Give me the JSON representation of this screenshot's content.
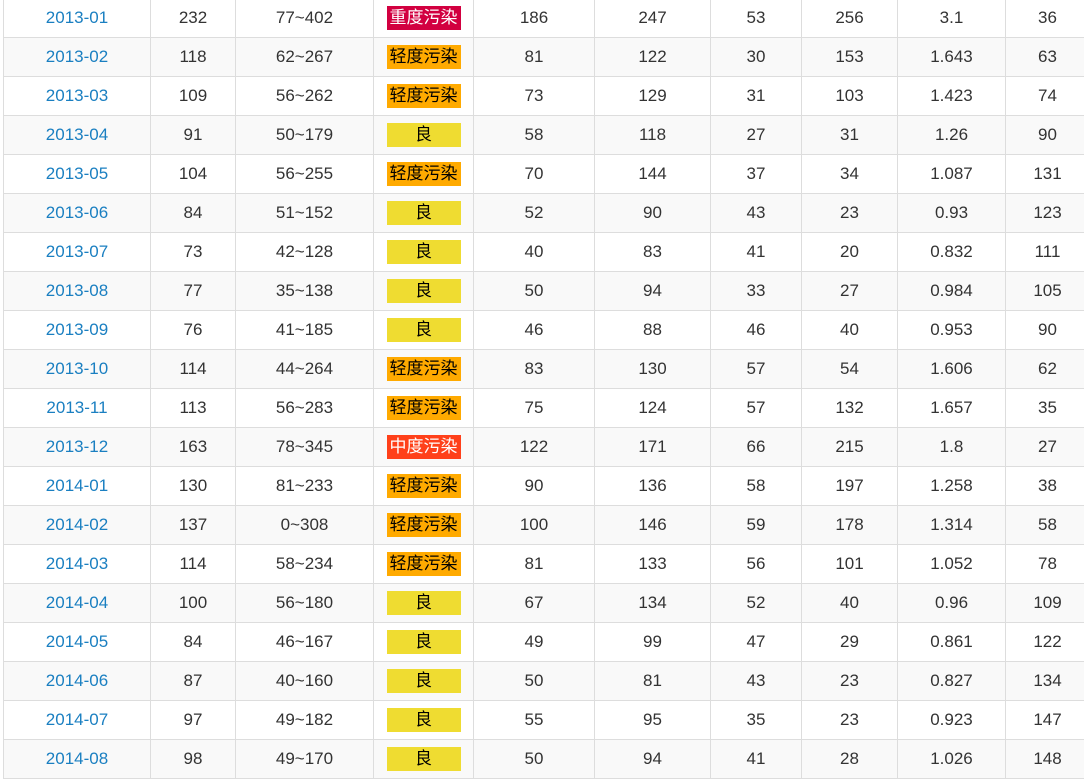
{
  "rows": [
    {
      "month": "2013-01",
      "aqi": "232",
      "range": "77~402",
      "level": "重度污染",
      "level_key": "heavy",
      "pm25": "186",
      "pm10": "247",
      "so2": "53",
      "co": "256",
      "no2": "3.1",
      "o3": "36"
    },
    {
      "month": "2013-02",
      "aqi": "118",
      "range": "62~267",
      "level": "轻度污染",
      "level_key": "light",
      "pm25": "81",
      "pm10": "122",
      "so2": "30",
      "co": "153",
      "no2": "1.643",
      "o3": "63"
    },
    {
      "month": "2013-03",
      "aqi": "109",
      "range": "56~262",
      "level": "轻度污染",
      "level_key": "light",
      "pm25": "73",
      "pm10": "129",
      "so2": "31",
      "co": "103",
      "no2": "1.423",
      "o3": "74"
    },
    {
      "month": "2013-04",
      "aqi": "91",
      "range": "50~179",
      "level": "良",
      "level_key": "good",
      "pm25": "58",
      "pm10": "118",
      "so2": "27",
      "co": "31",
      "no2": "1.26",
      "o3": "90"
    },
    {
      "month": "2013-05",
      "aqi": "104",
      "range": "56~255",
      "level": "轻度污染",
      "level_key": "light",
      "pm25": "70",
      "pm10": "144",
      "so2": "37",
      "co": "34",
      "no2": "1.087",
      "o3": "131"
    },
    {
      "month": "2013-06",
      "aqi": "84",
      "range": "51~152",
      "level": "良",
      "level_key": "good",
      "pm25": "52",
      "pm10": "90",
      "so2": "43",
      "co": "23",
      "no2": "0.93",
      "o3": "123"
    },
    {
      "month": "2013-07",
      "aqi": "73",
      "range": "42~128",
      "level": "良",
      "level_key": "good",
      "pm25": "40",
      "pm10": "83",
      "so2": "41",
      "co": "20",
      "no2": "0.832",
      "o3": "111"
    },
    {
      "month": "2013-08",
      "aqi": "77",
      "range": "35~138",
      "level": "良",
      "level_key": "good",
      "pm25": "50",
      "pm10": "94",
      "so2": "33",
      "co": "27",
      "no2": "0.984",
      "o3": "105"
    },
    {
      "month": "2013-09",
      "aqi": "76",
      "range": "41~185",
      "level": "良",
      "level_key": "good",
      "pm25": "46",
      "pm10": "88",
      "so2": "46",
      "co": "40",
      "no2": "0.953",
      "o3": "90"
    },
    {
      "month": "2013-10",
      "aqi": "114",
      "range": "44~264",
      "level": "轻度污染",
      "level_key": "light",
      "pm25": "83",
      "pm10": "130",
      "so2": "57",
      "co": "54",
      "no2": "1.606",
      "o3": "62"
    },
    {
      "month": "2013-11",
      "aqi": "113",
      "range": "56~283",
      "level": "轻度污染",
      "level_key": "light",
      "pm25": "75",
      "pm10": "124",
      "so2": "57",
      "co": "132",
      "no2": "1.657",
      "o3": "35"
    },
    {
      "month": "2013-12",
      "aqi": "163",
      "range": "78~345",
      "level": "中度污染",
      "level_key": "mid",
      "pm25": "122",
      "pm10": "171",
      "so2": "66",
      "co": "215",
      "no2": "1.8",
      "o3": "27"
    },
    {
      "month": "2014-01",
      "aqi": "130",
      "range": "81~233",
      "level": "轻度污染",
      "level_key": "light",
      "pm25": "90",
      "pm10": "136",
      "so2": "58",
      "co": "197",
      "no2": "1.258",
      "o3": "38"
    },
    {
      "month": "2014-02",
      "aqi": "137",
      "range": "0~308",
      "level": "轻度污染",
      "level_key": "light",
      "pm25": "100",
      "pm10": "146",
      "so2": "59",
      "co": "178",
      "no2": "1.314",
      "o3": "58"
    },
    {
      "month": "2014-03",
      "aqi": "114",
      "range": "58~234",
      "level": "轻度污染",
      "level_key": "light",
      "pm25": "81",
      "pm10": "133",
      "so2": "56",
      "co": "101",
      "no2": "1.052",
      "o3": "78"
    },
    {
      "month": "2014-04",
      "aqi": "100",
      "range": "56~180",
      "level": "良",
      "level_key": "good",
      "pm25": "67",
      "pm10": "134",
      "so2": "52",
      "co": "40",
      "no2": "0.96",
      "o3": "109"
    },
    {
      "month": "2014-05",
      "aqi": "84",
      "range": "46~167",
      "level": "良",
      "level_key": "good",
      "pm25": "49",
      "pm10": "99",
      "so2": "47",
      "co": "29",
      "no2": "0.861",
      "o3": "122"
    },
    {
      "month": "2014-06",
      "aqi": "87",
      "range": "40~160",
      "level": "良",
      "level_key": "good",
      "pm25": "50",
      "pm10": "81",
      "so2": "43",
      "co": "23",
      "no2": "0.827",
      "o3": "134"
    },
    {
      "month": "2014-07",
      "aqi": "97",
      "range": "49~182",
      "level": "良",
      "level_key": "good",
      "pm25": "55",
      "pm10": "95",
      "so2": "35",
      "co": "23",
      "no2": "0.923",
      "o3": "147"
    },
    {
      "month": "2014-08",
      "aqi": "98",
      "range": "49~170",
      "level": "良",
      "level_key": "good",
      "pm25": "50",
      "pm10": "94",
      "so2": "41",
      "co": "28",
      "no2": "1.026",
      "o3": "148"
    }
  ],
  "colors": {
    "link": "#1a7fc1",
    "good": "#efdc31",
    "light": "#ffaa00",
    "mid": "#ff401a",
    "heavy": "#d20040"
  }
}
